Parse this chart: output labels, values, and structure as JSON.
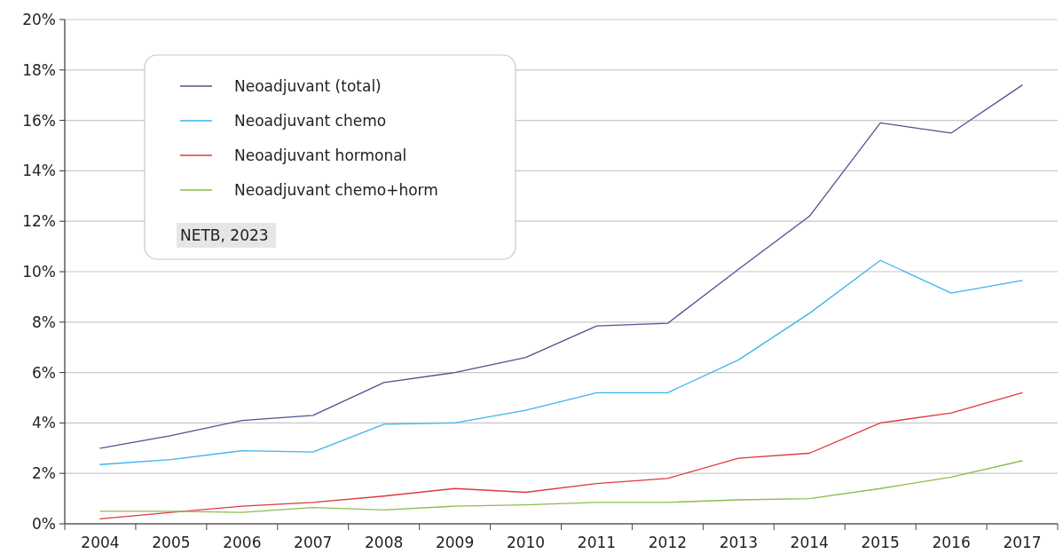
{
  "chart_data": {
    "type": "line",
    "categories": [
      "2004",
      "2005",
      "2006",
      "2007",
      "2008",
      "2009",
      "2010",
      "2011",
      "2012",
      "2013",
      "2014",
      "2015",
      "2016",
      "2017"
    ],
    "series": [
      {
        "name": "Neoadjuvant (total)",
        "color": "#4b5590",
        "values": [
          3.0,
          3.5,
          4.1,
          4.3,
          5.6,
          6.0,
          6.6,
          7.85,
          7.95,
          10.1,
          12.2,
          15.9,
          15.5,
          17.4
        ]
      },
      {
        "name": "Neoadjuvant chemo",
        "color": "#3db4ec",
        "values": [
          2.35,
          2.55,
          2.9,
          2.85,
          3.95,
          4.0,
          4.5,
          5.2,
          5.2,
          6.5,
          8.35,
          10.45,
          9.15,
          9.65
        ]
      },
      {
        "name": "Neoadjuvant hormonal",
        "color": "#e0383c",
        "values": [
          0.2,
          0.45,
          0.7,
          0.85,
          1.1,
          1.4,
          1.25,
          1.6,
          1.8,
          2.6,
          2.8,
          4.0,
          4.4,
          5.2
        ]
      },
      {
        "name": "Neoadjuvant chemo+horm",
        "color": "#8cbc4c",
        "values": [
          0.5,
          0.5,
          0.45,
          0.65,
          0.55,
          0.7,
          0.75,
          0.85,
          0.85,
          0.95,
          1.0,
          1.4,
          1.85,
          2.5
        ]
      }
    ],
    "ylim": [
      0,
      20
    ],
    "yticks": [
      {
        "value": 0,
        "label": "0%"
      },
      {
        "value": 2,
        "label": "2%"
      },
      {
        "value": 4,
        "label": "4%"
      },
      {
        "value": 6,
        "label": "6%"
      },
      {
        "value": 8,
        "label": "8%"
      },
      {
        "value": 10,
        "label": "10%"
      },
      {
        "value": 12,
        "label": "12%"
      },
      {
        "value": 14,
        "label": "14%"
      },
      {
        "value": 16,
        "label": "16%"
      },
      {
        "value": 18,
        "label": "18%"
      },
      {
        "value": 20,
        "label": "20%"
      }
    ],
    "grid": "y",
    "legend": "top left",
    "marker": "none",
    "line_style": "solid",
    "annotations": [
      "NETB, 2023"
    ]
  }
}
